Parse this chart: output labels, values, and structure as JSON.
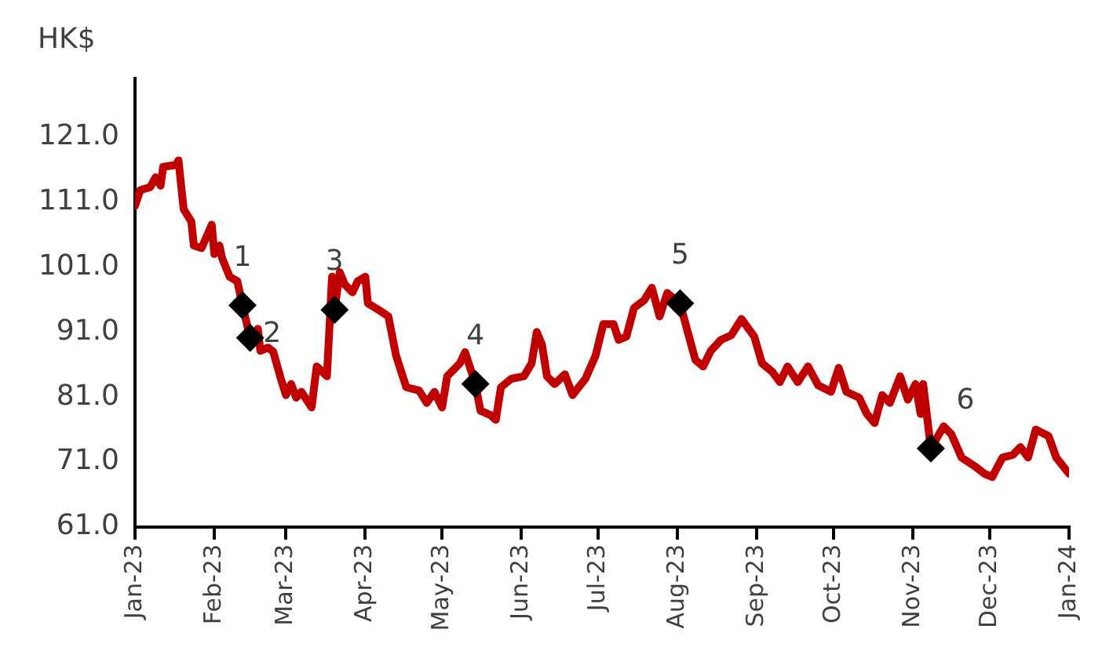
{
  "chart_data": {
    "type": "line",
    "ylabel": "HK$",
    "xlim": [
      "2023-01-01",
      "2024-01-01"
    ],
    "xticks": [
      {
        "value": "2023-01-01",
        "label": "Jan-23"
      },
      {
        "value": "2023-02-01",
        "label": "Feb-23"
      },
      {
        "value": "2023-03-01",
        "label": "Mar-23"
      },
      {
        "value": "2023-04-01",
        "label": "Apr-23"
      },
      {
        "value": "2023-05-01",
        "label": "May-23"
      },
      {
        "value": "2023-06-01",
        "label": "Jun-23"
      },
      {
        "value": "2023-07-01",
        "label": "Jul-23"
      },
      {
        "value": "2023-08-01",
        "label": "Aug-23"
      },
      {
        "value": "2023-09-01",
        "label": "Sep-23"
      },
      {
        "value": "2023-10-01",
        "label": "Oct-23"
      },
      {
        "value": "2023-11-01",
        "label": "Nov-23"
      },
      {
        "value": "2023-12-01",
        "label": "Dec-23"
      },
      {
        "value": "2024-01-01",
        "label": "Jan-24"
      }
    ],
    "ylim": [
      61,
      130
    ],
    "yticks": [
      {
        "value": 61,
        "label": "61.0"
      },
      {
        "value": 71,
        "label": "71.0"
      },
      {
        "value": 81,
        "label": "81.0"
      },
      {
        "value": 91,
        "label": "91.0"
      },
      {
        "value": 101,
        "label": "101.0"
      },
      {
        "value": 111,
        "label": "111.0"
      },
      {
        "value": 121,
        "label": "121.0"
      }
    ],
    "grid": false,
    "legend": false,
    "series": [
      {
        "type": "line",
        "color": "#c00000",
        "marker": "none",
        "x": [
          "2023-01-01",
          "2023-01-03",
          "2023-01-07",
          "2023-01-09",
          "2023-01-11",
          "2023-01-12",
          "2023-01-17",
          "2023-01-18",
          "2023-01-20",
          "2023-01-23",
          "2023-01-24",
          "2023-01-27",
          "2023-01-31",
          "2023-02-01",
          "2023-02-03",
          "2023-02-04",
          "2023-02-07",
          "2023-02-10",
          "2023-02-12",
          "2023-02-15",
          "2023-02-18",
          "2023-02-19",
          "2023-02-22",
          "2023-02-24",
          "2023-02-27",
          "2023-03-01",
          "2023-03-03",
          "2023-03-05",
          "2023-03-07",
          "2023-03-11",
          "2023-03-13",
          "2023-03-17",
          "2023-03-19",
          "2023-03-20",
          "2023-03-22",
          "2023-03-24",
          "2023-03-27",
          "2023-03-29",
          "2023-04-01",
          "2023-04-02",
          "2023-04-07",
          "2023-04-10",
          "2023-04-13",
          "2023-04-17",
          "2023-04-22",
          "2023-04-25",
          "2023-04-28",
          "2023-05-01",
          "2023-05-03",
          "2023-05-08",
          "2023-05-10",
          "2023-05-14",
          "2023-05-16",
          "2023-05-20",
          "2023-05-22",
          "2023-05-24",
          "2023-05-28",
          "2023-06-02",
          "2023-06-05",
          "2023-06-07",
          "2023-06-09",
          "2023-06-11",
          "2023-06-14",
          "2023-06-18",
          "2023-06-21",
          "2023-06-26",
          "2023-06-30",
          "2023-07-03",
          "2023-07-07",
          "2023-07-09",
          "2023-07-12",
          "2023-07-15",
          "2023-07-19",
          "2023-07-22",
          "2023-07-25",
          "2023-07-28",
          "2023-08-02",
          "2023-08-05",
          "2023-08-08",
          "2023-08-11",
          "2023-08-14",
          "2023-08-18",
          "2023-08-22",
          "2023-08-26",
          "2023-08-31",
          "2023-09-03",
          "2023-09-07",
          "2023-09-10",
          "2023-09-13",
          "2023-09-17",
          "2023-09-21",
          "2023-09-25",
          "2023-09-30",
          "2023-10-03",
          "2023-10-06",
          "2023-10-11",
          "2023-10-14",
          "2023-10-17",
          "2023-10-20",
          "2023-10-23",
          "2023-10-27",
          "2023-10-30",
          "2023-11-02",
          "2023-11-04",
          "2023-11-05",
          "2023-11-08",
          "2023-11-13",
          "2023-11-16",
          "2023-11-20",
          "2023-11-25",
          "2023-11-29",
          "2023-12-02",
          "2023-12-06",
          "2023-12-10",
          "2023-12-13",
          "2023-12-16",
          "2023-12-19",
          "2023-12-24",
          "2023-12-27",
          "2024-01-01"
        ],
        "values": [
          110.4,
          112.8,
          113.3,
          114.8,
          113.5,
          116.4,
          116.7,
          117.4,
          109.9,
          108,
          104.3,
          103.9,
          107.5,
          103,
          104.3,
          102.4,
          99.5,
          98.8,
          95.1,
          90.1,
          91.5,
          88.1,
          88.6,
          88,
          83.8,
          81.3,
          83,
          80.9,
          81.8,
          79.4,
          85.7,
          84.2,
          99.5,
          94.4,
          100.2,
          98.3,
          97.1,
          98.8,
          99.5,
          95.4,
          94.2,
          93.4,
          87.4,
          82.5,
          82,
          80.1,
          81.8,
          79.4,
          84.2,
          86.2,
          87.9,
          83,
          78.9,
          78.2,
          77.5,
          82.5,
          83.8,
          84.2,
          86.2,
          91,
          89.1,
          84.2,
          83,
          84.5,
          81.3,
          83.8,
          87.4,
          92.2,
          92.2,
          89.8,
          90.3,
          94.7,
          95.9,
          97.8,
          93.4,
          97,
          95.4,
          91,
          86.7,
          85.7,
          88.1,
          89.8,
          90.5,
          93,
          90.3,
          86.2,
          84.9,
          83.3,
          85.7,
          83.3,
          85.7,
          82.8,
          81.8,
          85.5,
          81.8,
          80.9,
          78.4,
          77,
          81.3,
          80.1,
          84.2,
          80.6,
          83,
          78.4,
          83,
          73.1,
          76.5,
          75.3,
          71.7,
          70.4,
          69.2,
          68.7,
          71.7,
          72.1,
          73.3,
          71.7,
          76,
          75,
          71.7,
          69.2
        ]
      },
      {
        "type": "scatter",
        "color": "#000000",
        "marker": "diamond",
        "x": [
          "2023-02-12",
          "2023-02-15",
          "2023-03-20",
          "2023-05-14",
          "2023-08-02",
          "2023-11-08"
        ],
        "values": [
          95.1,
          90.1,
          94.4,
          83,
          95.4,
          73.1
        ]
      }
    ],
    "annotations": [
      {
        "text": "1",
        "x": "2023-02-12",
        "y": 95.1
      },
      {
        "text": "2",
        "x": "2023-02-15",
        "y": 90.1
      },
      {
        "text": "3",
        "x": "2023-03-20",
        "y": 94.4
      },
      {
        "text": "4",
        "x": "2023-05-14",
        "y": 83
      },
      {
        "text": "5",
        "x": "2023-08-02",
        "y": 95.4
      },
      {
        "text": "6",
        "x": "2023-11-08",
        "y": 73.1
      }
    ]
  }
}
